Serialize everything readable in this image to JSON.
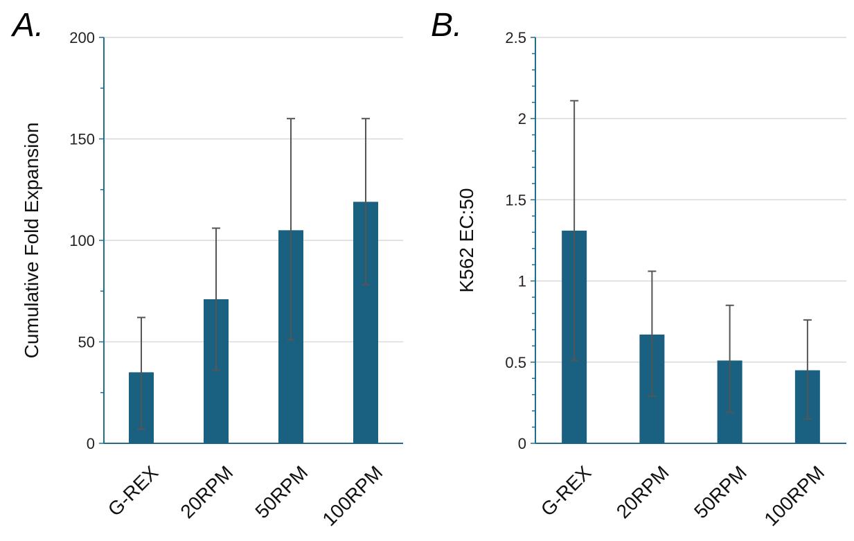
{
  "colors": {
    "bar": "#1a6080"
  },
  "chart_data": [
    {
      "panel_label": "A.",
      "type": "bar",
      "title": "",
      "xlabel": "",
      "ylabel": "Cumulative Fold Expansion",
      "categories": [
        "G-REX",
        "20RPM",
        "50RPM",
        "100RPM"
      ],
      "values": [
        35,
        71,
        105,
        119
      ],
      "error_low": [
        7,
        36,
        51,
        78
      ],
      "error_high": [
        62,
        106,
        160,
        160
      ],
      "ylim": [
        0,
        200
      ],
      "yticks": [
        0,
        50,
        100,
        150,
        200
      ],
      "ytick_labels": [
        "0",
        "50",
        "100",
        "150",
        "200"
      ],
      "minor_ticks_per_major": 2,
      "grid": true,
      "legend": "none"
    },
    {
      "panel_label": "B.",
      "type": "bar",
      "title": "",
      "xlabel": "",
      "ylabel": "K562 EC:50",
      "categories": [
        "G-REX",
        "20RPM",
        "50RPM",
        "100RPM"
      ],
      "values": [
        1.31,
        0.67,
        0.51,
        0.45
      ],
      "error_low": [
        0.51,
        0.29,
        0.19,
        0.15
      ],
      "error_high": [
        2.11,
        1.06,
        0.85,
        0.76
      ],
      "ylim": [
        0,
        2.5
      ],
      "yticks": [
        0,
        0.5,
        1,
        1.5,
        2,
        2.5
      ],
      "ytick_labels": [
        "0",
        "0.5",
        "1",
        "1.5",
        "2",
        "2.5"
      ],
      "minor_ticks_per_major": 5,
      "grid": true,
      "legend": "none"
    }
  ]
}
